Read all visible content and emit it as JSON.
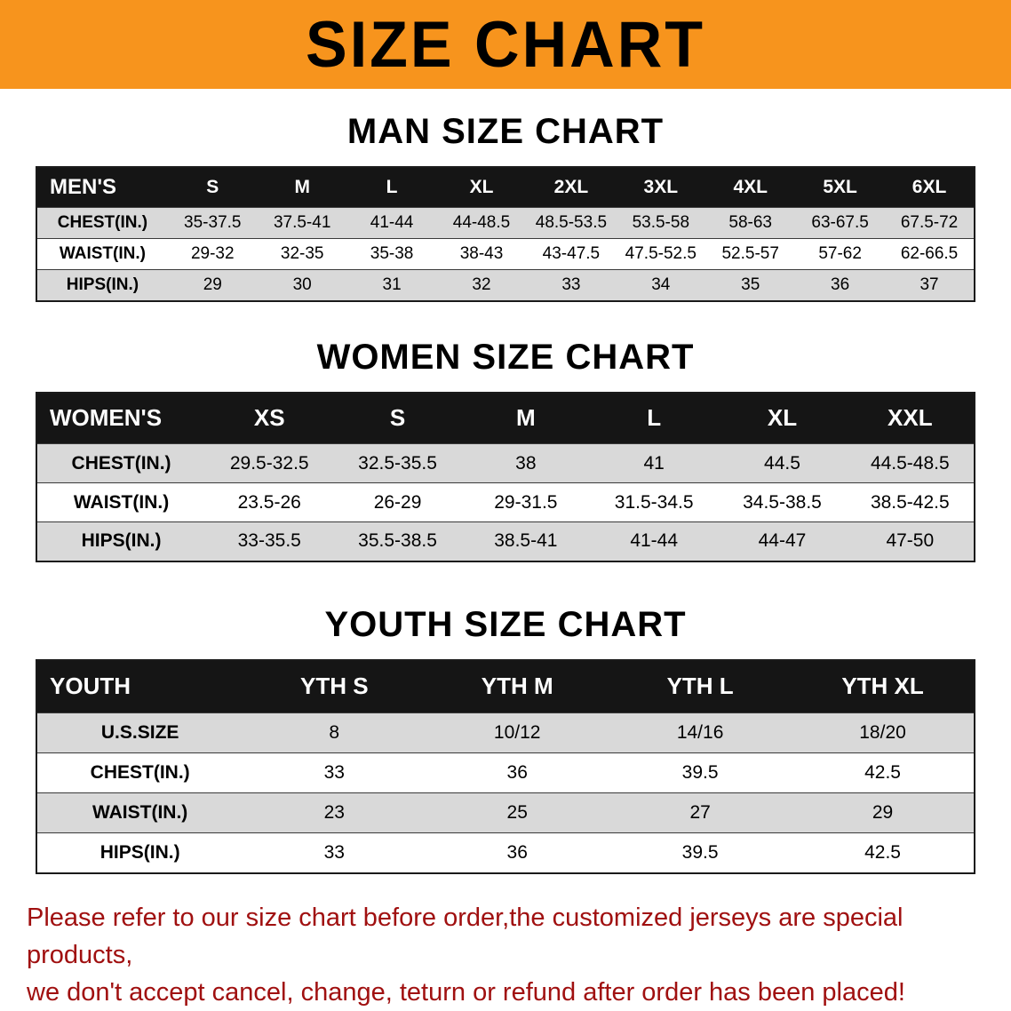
{
  "banner": {
    "title": "SIZE CHART"
  },
  "colors": {
    "banner-bg": "#f7941d",
    "header-bg": "#151515",
    "row-gray": "#d9d9d9",
    "disclaimer-red": "#a01010"
  },
  "sections": [
    {
      "heading": "MAN SIZE CHART",
      "table": {
        "header": [
          "MEN'S",
          "S",
          "M",
          "L",
          "XL",
          "2XL",
          "3XL",
          "4XL",
          "5XL",
          "6XL"
        ],
        "rows": [
          [
            "CHEST(IN.)",
            "35-37.5",
            "37.5-41",
            "41-44",
            "44-48.5",
            "48.5-53.5",
            "53.5-58",
            "58-63",
            "63-67.5",
            "67.5-72"
          ],
          [
            "WAIST(IN.)",
            "29-32",
            "32-35",
            "35-38",
            "38-43",
            "43-47.5",
            "47.5-52.5",
            "52.5-57",
            "57-62",
            "62-66.5"
          ],
          [
            "HIPS(IN.)",
            "29",
            "30",
            "31",
            "32",
            "33",
            "34",
            "35",
            "36",
            "37"
          ]
        ]
      }
    },
    {
      "heading": "WOMEN SIZE CHART",
      "table": {
        "header": [
          "WOMEN'S",
          "XS",
          "S",
          "M",
          "L",
          "XL",
          "XXL"
        ],
        "rows": [
          [
            "CHEST(IN.)",
            "29.5-32.5",
            "32.5-35.5",
            "38",
            "41",
            "44.5",
            "44.5-48.5"
          ],
          [
            "WAIST(IN.)",
            "23.5-26",
            "26-29",
            "29-31.5",
            "31.5-34.5",
            "34.5-38.5",
            "38.5-42.5"
          ],
          [
            "HIPS(IN.)",
            "33-35.5",
            "35.5-38.5",
            "38.5-41",
            "41-44",
            "44-47",
            "47-50"
          ]
        ]
      }
    },
    {
      "heading": "YOUTH SIZE CHART",
      "table": {
        "header": [
          "YOUTH",
          "YTH S",
          "YTH M",
          "YTH L",
          "YTH XL"
        ],
        "rows": [
          [
            "U.S.SIZE",
            "8",
            "10/12",
            "14/16",
            "18/20"
          ],
          [
            "CHEST(IN.)",
            "33",
            "36",
            "39.5",
            "42.5"
          ],
          [
            "WAIST(IN.)",
            "23",
            "25",
            "27",
            "29"
          ],
          [
            "HIPS(IN.)",
            "33",
            "36",
            "39.5",
            "42.5"
          ]
        ]
      }
    }
  ],
  "disclaimer": {
    "line1": "Please refer to our size chart before order,the customized jerseys are special products,",
    "line2": "we don't accept cancel, change, teturn or refund after order has been placed!"
  }
}
